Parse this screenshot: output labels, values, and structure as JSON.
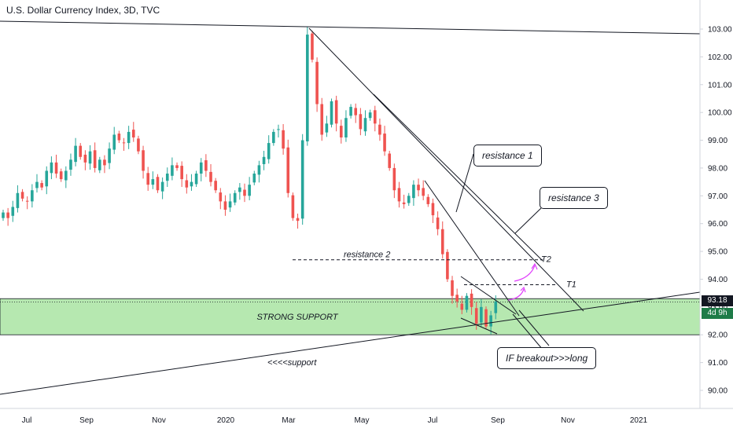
{
  "title": "U.S. Dollar Currency Index, 3D, TVC",
  "colors": {
    "up": "#26a69a",
    "down": "#ef5350",
    "line": "#131722",
    "support_fill": "#b6e8b0",
    "arrow": "#e040fb",
    "tag": "#1e7b48"
  },
  "annotations": {
    "resistance1": "resistance 1",
    "resistance2": "resistance 2",
    "resistance3": "resistance 3",
    "strong_support": "STRONG SUPPORT",
    "support": "<<<<support",
    "t1": "T1",
    "t2": "T2",
    "breakout": "IF breakout>>>long"
  },
  "price_label": {
    "value": "93.18",
    "countdown": "4d 9h"
  },
  "chart_data": {
    "type": "candlestick",
    "title": "U.S. Dollar Currency Index, 3D, TVC",
    "x_ticks": [
      "Jul",
      "Sep",
      "Nov",
      "2020",
      "Mar",
      "May",
      "Jul",
      "Sep",
      "Nov",
      "2021"
    ],
    "y_ticks": [
      "103.00",
      "102.00",
      "101.00",
      "100.00",
      "99.00",
      "98.00",
      "97.00",
      "96.00",
      "95.00",
      "94.00",
      "93.00",
      "92.00",
      "91.00",
      "90.00"
    ],
    "ylim": [
      89.2,
      103.5
    ],
    "grid": false,
    "close_series": [
      96.4,
      96.2,
      96.6,
      97.1,
      96.9,
      96.8,
      97.2,
      97.5,
      97.3,
      97.9,
      98.2,
      97.8,
      97.6,
      97.9,
      98.3,
      98.8,
      98.4,
      98.2,
      98.6,
      98.0,
      98.3,
      98.1,
      98.7,
      99.2,
      99.0,
      98.9,
      99.3,
      99.1,
      98.6,
      97.9,
      97.4,
      97.6,
      97.2,
      97.5,
      97.8,
      98.1,
      98.0,
      97.6,
      97.3,
      97.5,
      97.8,
      98.2,
      97.9,
      97.5,
      97.2,
      96.8,
      96.5,
      96.8,
      97.1,
      97.3,
      97.0,
      97.4,
      97.8,
      98.1,
      98.4,
      98.9,
      99.3,
      99.4,
      98.7,
      97.1,
      96.2,
      96.1,
      99.0,
      102.8,
      101.9,
      100.3,
      99.2,
      99.6,
      100.4,
      99.6,
      99.1,
      99.8,
      100.2,
      99.9,
      99.4,
      99.8,
      100.0,
      99.6,
      99.2,
      98.6,
      98.0,
      97.2,
      96.8,
      96.7,
      97.0,
      97.4,
      97.2,
      97.0,
      96.7,
      96.3,
      95.8,
      94.9,
      94.0,
      93.4,
      93.2,
      92.9,
      93.4,
      93.0,
      92.4,
      93.0,
      92.3,
      92.7,
      93.2
    ],
    "strong_support_zone": [
      92.0,
      93.3
    ],
    "resistance_2_level": 94.7,
    "t1_level": 93.8,
    "t2_level": 94.7,
    "last_price": 93.18
  }
}
